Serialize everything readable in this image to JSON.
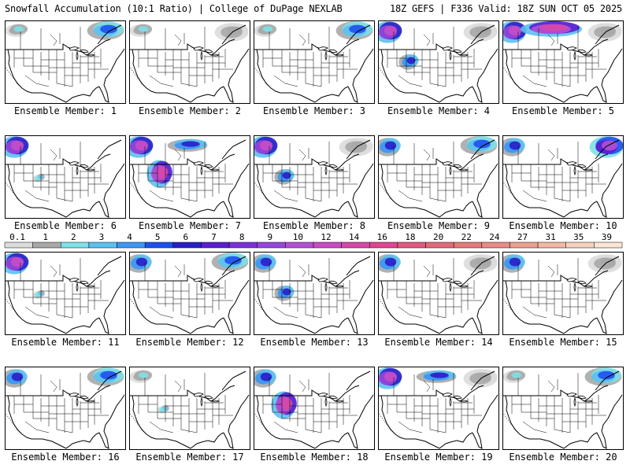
{
  "header": {
    "left": "Snowfall Accumulation (10:1 Ratio) | College of DuPage NEXLAB",
    "right": "18Z GEFS | F336 Valid: 18Z SUN OCT 05 2025"
  },
  "colors": {
    "panel_border": "#000000",
    "map_lines": "#000000",
    "background": "#ffffff"
  },
  "chart_data": {
    "type": "heatmap",
    "description_type": "snowfall-ensemble-map-grid",
    "units": "inches",
    "colorbar": {
      "ticks": [
        "0.1",
        "1",
        "2",
        "3",
        "4",
        "5",
        "6",
        "7",
        "8",
        "9",
        "10",
        "12",
        "14",
        "16",
        "18",
        "20",
        "22",
        "24",
        "27",
        "31",
        "35",
        "39"
      ],
      "bins": [
        {
          "lo": 0.1,
          "hi": 1,
          "color": "#dcdcdc"
        },
        {
          "lo": 1,
          "hi": 2,
          "color": "#a8a8a8"
        },
        {
          "lo": 2,
          "hi": 3,
          "color": "#7ee0e8"
        },
        {
          "lo": 3,
          "hi": 4,
          "color": "#5cc0f0"
        },
        {
          "lo": 4,
          "hi": 5,
          "color": "#3c96f4"
        },
        {
          "lo": 5,
          "hi": 6,
          "color": "#1e50f0"
        },
        {
          "lo": 6,
          "hi": 7,
          "color": "#2a1ec8"
        },
        {
          "lo": 7,
          "hi": 8,
          "color": "#5a1ed2"
        },
        {
          "lo": 8,
          "hi": 9,
          "color": "#7a32d8"
        },
        {
          "lo": 9,
          "hi": 10,
          "color": "#9646dc"
        },
        {
          "lo": 10,
          "hi": 12,
          "color": "#b450d6"
        },
        {
          "lo": 12,
          "hi": 14,
          "color": "#c84cc4"
        },
        {
          "lo": 14,
          "hi": 16,
          "color": "#d648aa"
        },
        {
          "lo": 16,
          "hi": 18,
          "color": "#e04690"
        },
        {
          "lo": 18,
          "hi": 20,
          "color": "#e25a80"
        },
        {
          "lo": 20,
          "hi": 22,
          "color": "#e26a78"
        },
        {
          "lo": 22,
          "hi": 24,
          "color": "#e47a78"
        },
        {
          "lo": 24,
          "hi": 27,
          "color": "#e88c84"
        },
        {
          "lo": 27,
          "hi": 31,
          "color": "#eca090"
        },
        {
          "lo": 31,
          "hi": 35,
          "color": "#f2b8a4"
        },
        {
          "lo": 35,
          "hi": 39,
          "color": "#f6d2bc"
        },
        {
          "lo": 39,
          "hi": 45,
          "color": "#fbe6d6"
        }
      ]
    },
    "panels": [
      {
        "label": "Ensemble Member: 1",
        "regions": [
          "northwest-light",
          "northeast-canada-moderate"
        ]
      },
      {
        "label": "Ensemble Member: 2",
        "regions": [
          "northwest-light",
          "northeast-canada-light"
        ]
      },
      {
        "label": "Ensemble Member: 3",
        "regions": [
          "northwest-light",
          "northeast-canada-moderate"
        ]
      },
      {
        "label": "Ensemble Member: 4",
        "regions": [
          "northwest-heavy",
          "rockies-moderate",
          "northeast-canada-light"
        ]
      },
      {
        "label": "Ensemble Member: 5",
        "regions": [
          "northwest-heavy",
          "canada-heavy",
          "northeast-canada-light"
        ]
      },
      {
        "label": "Ensemble Member: 6",
        "regions": [
          "northwest-heavy",
          "rockies-light"
        ]
      },
      {
        "label": "Ensemble Member: 7",
        "regions": [
          "northwest-heavy",
          "rockies-heavy",
          "canada-moderate"
        ]
      },
      {
        "label": "Ensemble Member: 8",
        "regions": [
          "northwest-heavy",
          "rockies-moderate",
          "northeast-canada-light"
        ]
      },
      {
        "label": "Ensemble Member: 9",
        "regions": [
          "northwest-moderate",
          "northeast-canada-moderate"
        ]
      },
      {
        "label": "Ensemble Member: 10",
        "regions": [
          "northwest-moderate",
          "northeast-canada-heavy"
        ]
      },
      {
        "label": "Ensemble Member: 11",
        "regions": [
          "northwest-heavy",
          "rockies-light"
        ]
      },
      {
        "label": "Ensemble Member: 12",
        "regions": [
          "northwest-moderate",
          "northeast-canada-moderate"
        ]
      },
      {
        "label": "Ensemble Member: 13",
        "regions": [
          "northwest-moderate",
          "rockies-moderate"
        ]
      },
      {
        "label": "Ensemble Member: 14",
        "regions": [
          "northwest-moderate",
          "northeast-canada-light"
        ]
      },
      {
        "label": "Ensemble Member: 15",
        "regions": [
          "northwest-moderate",
          "northeast-canada-light"
        ]
      },
      {
        "label": "Ensemble Member: 16",
        "regions": [
          "northwest-moderate",
          "northeast-canada-moderate"
        ]
      },
      {
        "label": "Ensemble Member: 17",
        "regions": [
          "northwest-light",
          "rockies-light"
        ]
      },
      {
        "label": "Ensemble Member: 18",
        "regions": [
          "northwest-moderate",
          "rockies-heavy"
        ]
      },
      {
        "label": "Ensemble Member: 19",
        "regions": [
          "northwest-heavy",
          "canada-moderate",
          "northeast-canada-light"
        ]
      },
      {
        "label": "Ensemble Member: 20",
        "regions": [
          "northwest-light",
          "northeast-canada-moderate"
        ]
      }
    ]
  }
}
